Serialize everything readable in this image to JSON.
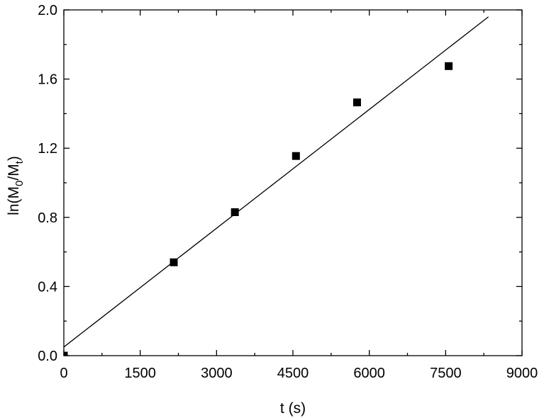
{
  "chart_data": {
    "type": "scatter",
    "xlabel": "t (s)",
    "ylabel": {
      "text_prefix": "ln(M",
      "sub_0": "0",
      "text_mid": "/M",
      "sub_t": "t",
      "text_suffix": ")"
    },
    "xlim": [
      0,
      9000
    ],
    "ylim": [
      0.0,
      2.0
    ],
    "x_ticks": [
      "0",
      "1500",
      "3000",
      "4500",
      "6000",
      "7500",
      "9000"
    ],
    "y_ticks": [
      "0.0",
      "0.4",
      "0.8",
      "1.2",
      "1.6",
      "2.0"
    ],
    "grid": false,
    "series": [
      {
        "marker": "square",
        "color": "#000000",
        "points": [
          {
            "x": 0,
            "y": 0.0
          },
          {
            "x": 2160,
            "y": 0.54
          },
          {
            "x": 3360,
            "y": 0.83
          },
          {
            "x": 4560,
            "y": 1.155
          },
          {
            "x": 5760,
            "y": 1.465
          },
          {
            "x": 7560,
            "y": 1.675
          }
        ]
      }
    ],
    "fit_line": {
      "x": [
        0,
        8340
      ],
      "y": [
        0.05,
        1.96
      ],
      "color": "#000000"
    }
  }
}
